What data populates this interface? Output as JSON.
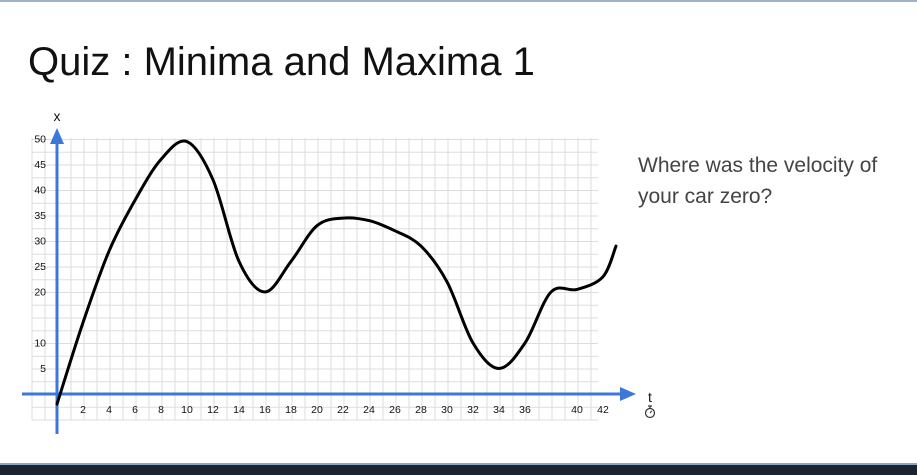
{
  "slide": {
    "title": "Quiz : Minima and Maxima 1",
    "question": "Where was the velocity of your car zero?"
  },
  "colors": {
    "axis": "#3b78d8",
    "curve": "#000000",
    "grid": "#dddddd",
    "text": "#111111"
  },
  "chart_data": {
    "type": "line",
    "title": "",
    "xlabel": "t",
    "ylabel": "x",
    "x_icon": "stopwatch-icon",
    "grid": true,
    "x_ticks": [
      2,
      4,
      6,
      8,
      10,
      12,
      14,
      16,
      18,
      20,
      22,
      24,
      26,
      28,
      30,
      32,
      34,
      36,
      40,
      42
    ],
    "y_ticks": [
      5,
      10,
      20,
      25,
      30,
      35,
      40,
      45,
      50
    ],
    "series": [
      {
        "points": [
          [
            0,
            -2
          ],
          [
            2,
            14
          ],
          [
            4,
            28
          ],
          [
            6,
            38
          ],
          [
            8,
            46
          ],
          [
            10,
            49.5
          ],
          [
            12,
            42
          ],
          [
            14,
            26
          ],
          [
            16,
            20
          ],
          [
            18,
            26
          ],
          [
            20,
            33
          ],
          [
            22,
            34.5
          ],
          [
            24,
            34
          ],
          [
            26,
            32
          ],
          [
            28,
            29
          ],
          [
            30,
            22
          ],
          [
            32,
            10
          ],
          [
            34,
            5
          ],
          [
            36,
            10
          ],
          [
            38,
            20
          ],
          [
            40,
            20.5
          ],
          [
            42,
            23
          ],
          [
            43,
            29
          ]
        ]
      }
    ]
  }
}
